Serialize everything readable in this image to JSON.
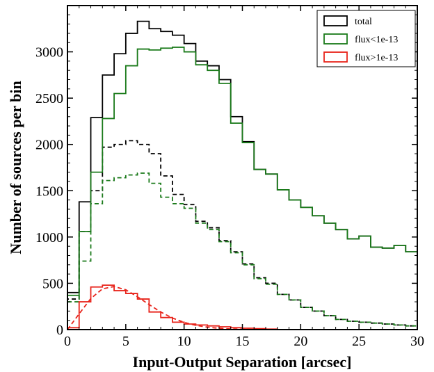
{
  "chart_data": {
    "type": "line",
    "drawstyle": "steps",
    "xlabel": "Input-Output Separation [arcsec]",
    "ylabel": "Number of sources per bin",
    "xlim": [
      0,
      30
    ],
    "ylim": [
      0,
      3500
    ],
    "x_ticks": [
      "0",
      "5",
      "10",
      "15",
      "20",
      "25",
      "30"
    ],
    "y_ticks": [
      "0",
      "500",
      "1000",
      "1500",
      "2000",
      "2500",
      "3000"
    ],
    "grid": false,
    "legend_position": "top-right",
    "bin_edges": [
      0,
      1,
      2,
      3,
      4,
      5,
      6,
      7,
      8,
      9,
      10,
      11,
      12,
      13,
      14,
      15,
      16,
      17,
      18,
      19,
      20,
      21,
      22,
      23,
      24,
      25,
      26,
      27,
      28,
      29,
      30
    ],
    "series": [
      {
        "name": "total",
        "linestyle": "solid",
        "color": "#000000",
        "values": [
          400,
          1380,
          2290,
          2750,
          2980,
          3200,
          3330,
          3250,
          3220,
          3180,
          3090,
          2900,
          2850,
          2700,
          2300,
          2030,
          1730,
          1680,
          1510,
          1400,
          1320,
          1230,
          1150,
          1080,
          980,
          1010,
          890,
          880,
          910,
          840
        ]
      },
      {
        "name": "flux<1e-13",
        "linestyle": "solid",
        "color": "#1a7a1a",
        "values": [
          370,
          1060,
          1700,
          2280,
          2550,
          2850,
          3030,
          3020,
          3040,
          3050,
          3000,
          2860,
          2800,
          2660,
          2230,
          2020,
          1730,
          1680,
          1510,
          1400,
          1320,
          1230,
          1150,
          1080,
          980,
          1010,
          890,
          880,
          910,
          840
        ]
      },
      {
        "name": "flux>1e-13",
        "linestyle": "solid",
        "color": "#e8231a",
        "values": [
          20,
          300,
          460,
          480,
          420,
          390,
          330,
          190,
          130,
          80,
          60,
          50,
          40,
          30,
          20,
          15,
          10,
          5,
          0,
          0,
          0,
          0,
          0,
          0,
          0,
          0,
          0,
          0,
          0,
          0
        ]
      },
      {
        "linestyle": "dashed",
        "color": "#000000",
        "values": [
          330,
          1060,
          1500,
          1970,
          2000,
          2040,
          2000,
          1900,
          1660,
          1460,
          1350,
          1170,
          1100,
          960,
          840,
          710,
          560,
          500,
          380,
          320,
          240,
          200,
          150,
          110,
          90,
          80,
          70,
          60,
          50,
          40
        ]
      },
      {
        "linestyle": "dashed",
        "color": "#1a7a1a",
        "values": [
          300,
          740,
          1360,
          1610,
          1640,
          1670,
          1690,
          1580,
          1430,
          1360,
          1310,
          1150,
          1080,
          950,
          830,
          700,
          550,
          490,
          380,
          320,
          240,
          200,
          150,
          110,
          90,
          80,
          70,
          60,
          50,
          40
        ]
      }
    ],
    "fit_curve": {
      "linestyle": "dashed",
      "color": "#e8231a",
      "x": [
        0,
        1,
        2,
        3,
        4,
        5,
        6,
        7,
        8,
        9,
        10,
        11,
        12,
        13,
        14,
        15,
        16,
        17,
        18
      ],
      "y": [
        0,
        170,
        335,
        440,
        465,
        430,
        355,
        270,
        190,
        125,
        78,
        46,
        26,
        14,
        7,
        3.5,
        1.7,
        0.8,
        0.4
      ]
    }
  },
  "colors": {
    "axis": "#000000"
  }
}
